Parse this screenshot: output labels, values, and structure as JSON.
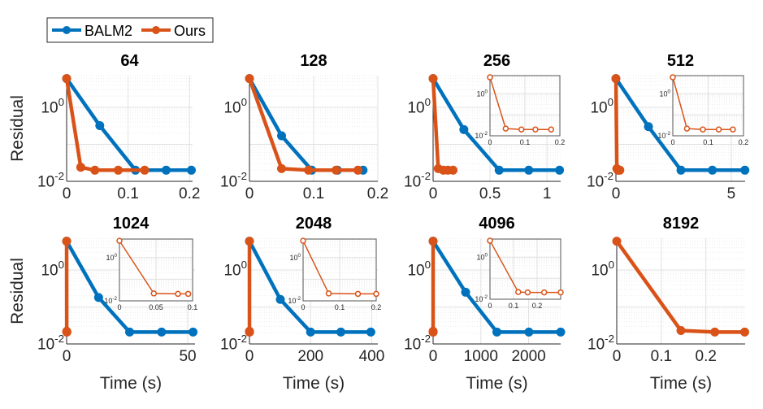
{
  "legend": {
    "placement": "top-left",
    "entries": [
      "BALM2",
      "Ours"
    ]
  },
  "colors": {
    "BALM2": "#0072BD",
    "Ours": "#D95319"
  },
  "chart_data": [
    {
      "type": "line",
      "title": "64",
      "ylabel": "Residual",
      "xlabel": "",
      "yscale": "log",
      "ylim": [
        0.01,
        7.2
      ],
      "xlim": [
        0,
        0.205
      ],
      "xticks": [
        0,
        0.1,
        0.2
      ],
      "xtick_labels": [
        "0",
        "0.1",
        "0.2"
      ],
      "ytick_labels": [
        "10^-2",
        "10^0"
      ],
      "grid": true,
      "series": [
        {
          "name": "BALM2",
          "x": [
            0,
            0.054,
            0.112,
            0.162,
            0.203
          ],
          "y": [
            6,
            0.32,
            0.02,
            0.02,
            0.02
          ]
        },
        {
          "name": "Ours",
          "x": [
            0,
            0.023,
            0.046,
            0.084,
            0.127
          ],
          "y": [
            6,
            0.024,
            0.02,
            0.02,
            0.02
          ]
        }
      ]
    },
    {
      "type": "line",
      "title": "128",
      "ylabel": "",
      "xlabel": "",
      "yscale": "log",
      "ylim": [
        0.01,
        7.2
      ],
      "xlim": [
        0,
        0.2
      ],
      "xticks": [
        0,
        0.1,
        0.2
      ],
      "xtick_labels": [
        "0",
        "0.1",
        "0.2"
      ],
      "ytick_labels": [
        "10^-2",
        "10^0"
      ],
      "grid": true,
      "series": [
        {
          "name": "BALM2",
          "x": [
            0,
            0.05,
            0.097,
            0.137,
            0.177
          ],
          "y": [
            6,
            0.17,
            0.02,
            0.02,
            0.02
          ]
        },
        {
          "name": "Ours",
          "x": [
            0,
            0.05,
            0.092,
            0.135,
            0.169
          ],
          "y": [
            6,
            0.022,
            0.02,
            0.02,
            0.02
          ]
        }
      ]
    },
    {
      "type": "line",
      "title": "256",
      "ylabel": "",
      "xlabel": "",
      "yscale": "log",
      "ylim": [
        0.01,
        7.2
      ],
      "xlim": [
        0,
        1.12
      ],
      "xticks": [
        0,
        0.5,
        1
      ],
      "xtick_labels": [
        "0",
        "0.5",
        "1"
      ],
      "ytick_labels": [
        "10^-2",
        "10^0"
      ],
      "grid": true,
      "series": [
        {
          "name": "BALM2",
          "x": [
            0,
            0.27,
            0.58,
            0.84,
            1.11
          ],
          "y": [
            6,
            0.25,
            0.02,
            0.02,
            0.02
          ]
        },
        {
          "name": "Ours",
          "x": [
            0,
            0.045,
            0.09,
            0.13,
            0.175
          ],
          "y": [
            6,
            0.022,
            0.02,
            0.02,
            0.02
          ]
        }
      ],
      "inset": {
        "series": "Ours",
        "xlim": [
          0,
          0.2
        ],
        "xticks": [
          0,
          0.1,
          0.2
        ],
        "xtick_labels": [
          "0",
          "0.1",
          "0.2"
        ],
        "ytick_labels": [
          "10^-2",
          "10^0"
        ]
      }
    },
    {
      "type": "line",
      "title": "512",
      "ylabel": "",
      "xlabel": "",
      "yscale": "log",
      "ylim": [
        0.01,
        7.2
      ],
      "xlim": [
        0,
        5.6
      ],
      "xticks": [
        0,
        5
      ],
      "xtick_labels": [
        "0",
        "5"
      ],
      "ytick_labels": [
        "10^-2",
        "10^0"
      ],
      "grid": true,
      "series": [
        {
          "name": "BALM2",
          "x": [
            0,
            1.41,
            2.82,
            4.18,
            5.59
          ],
          "y": [
            6,
            0.3,
            0.02,
            0.02,
            0.02
          ]
        },
        {
          "name": "Ours",
          "x": [
            0,
            0.04,
            0.085,
            0.13,
            0.17
          ],
          "y": [
            6,
            0.022,
            0.02,
            0.02,
            0.02
          ]
        }
      ],
      "inset": {
        "series": "Ours",
        "xlim": [
          0,
          0.2
        ],
        "xticks": [
          0,
          0.1,
          0.2
        ],
        "xtick_labels": [
          "0",
          "0.1",
          "0.2"
        ],
        "ytick_labels": [
          "10^-2",
          "10^0"
        ]
      }
    },
    {
      "type": "line",
      "title": "1024",
      "ylabel": "Residual",
      "xlabel": "Time (s)",
      "yscale": "log",
      "ylim": [
        0.01,
        7.2
      ],
      "xlim": [
        0,
        53
      ],
      "xticks": [
        0,
        50
      ],
      "xtick_labels": [
        "0",
        "50"
      ],
      "ytick_labels": [
        "10^-2",
        "10^0"
      ],
      "grid": true,
      "series": [
        {
          "name": "BALM2",
          "x": [
            0,
            13.2,
            26,
            39.2,
            52.2
          ],
          "y": [
            6,
            0.18,
            0.021,
            0.021,
            0.021
          ]
        },
        {
          "name": "Ours",
          "x": [
            0,
            0.047,
            0.08,
            0.094
          ],
          "y": [
            6,
            0.022,
            0.021,
            0.021
          ]
        }
      ],
      "inset": {
        "series": "Ours",
        "xlim": [
          0,
          0.1
        ],
        "xticks": [
          0,
          0.05,
          0.1
        ],
        "xtick_labels": [
          "0",
          "0.05",
          "0.1"
        ],
        "ytick_labels": [
          "10^-2",
          "10^0"
        ]
      }
    },
    {
      "type": "line",
      "title": "2048",
      "ylabel": "",
      "xlabel": "Time (s)",
      "yscale": "log",
      "ylim": [
        0.01,
        7.2
      ],
      "xlim": [
        0,
        420
      ],
      "xticks": [
        0,
        200,
        400
      ],
      "xtick_labels": [
        "0",
        "200",
        "400"
      ],
      "ytick_labels": [
        "10^-2",
        "10^0"
      ],
      "grid": true,
      "series": [
        {
          "name": "BALM2",
          "x": [
            0,
            101,
            200,
            299,
            397
          ],
          "y": [
            6,
            0.16,
            0.021,
            0.021,
            0.021
          ]
        },
        {
          "name": "Ours",
          "x": [
            0,
            0.07,
            0.15,
            0.2
          ],
          "y": [
            6,
            0.022,
            0.021,
            0.021
          ]
        }
      ],
      "inset": {
        "series": "Ours",
        "xlim": [
          0,
          0.2
        ],
        "xticks": [
          0,
          0.1,
          0.2
        ],
        "xtick_labels": [
          "0",
          "0.1",
          "0.2"
        ],
        "ytick_labels": [
          "10^-2",
          "10^0"
        ]
      }
    },
    {
      "type": "line",
      "title": "4096",
      "ylabel": "",
      "xlabel": "Time (s)",
      "yscale": "log",
      "ylim": [
        0.01,
        7.2
      ],
      "xlim": [
        0,
        2670
      ],
      "xticks": [
        0,
        1000,
        2000
      ],
      "xtick_labels": [
        "0",
        "1000",
        "2000"
      ],
      "ytick_labels": [
        "10^-2",
        "10^0"
      ],
      "grid": true,
      "series": [
        {
          "name": "BALM2",
          "x": [
            0,
            680,
            1335,
            2005,
            2670
          ],
          "y": [
            6,
            0.25,
            0.021,
            0.021,
            0.021
          ]
        },
        {
          "name": "Ours",
          "x": [
            0,
            0.12,
            0.16,
            0.23,
            0.3
          ],
          "y": [
            6,
            0.022,
            0.021,
            0.021,
            0.021
          ]
        }
      ],
      "inset": {
        "series": "Ours",
        "xlim": [
          0,
          0.3
        ],
        "xticks": [
          0,
          0.1,
          0.2
        ],
        "xtick_labels": [
          "0",
          "0.1",
          "0.2"
        ],
        "ytick_labels": [
          "10^-2",
          "10^0"
        ]
      }
    },
    {
      "type": "line",
      "title": "8192",
      "ylabel": "",
      "xlabel": "Time (s)",
      "yscale": "log",
      "ylim": [
        0.01,
        7.2
      ],
      "xlim": [
        0,
        0.288
      ],
      "xticks": [
        0,
        0.1,
        0.2
      ],
      "xtick_labels": [
        "0",
        "0.1",
        "0.2"
      ],
      "ytick_labels": [
        "10^-2",
        "10^0"
      ],
      "grid": true,
      "series": [
        {
          "name": "Ours",
          "x": [
            0,
            0.144,
            0.22,
            0.287
          ],
          "y": [
            6,
            0.023,
            0.021,
            0.021
          ]
        }
      ]
    }
  ]
}
